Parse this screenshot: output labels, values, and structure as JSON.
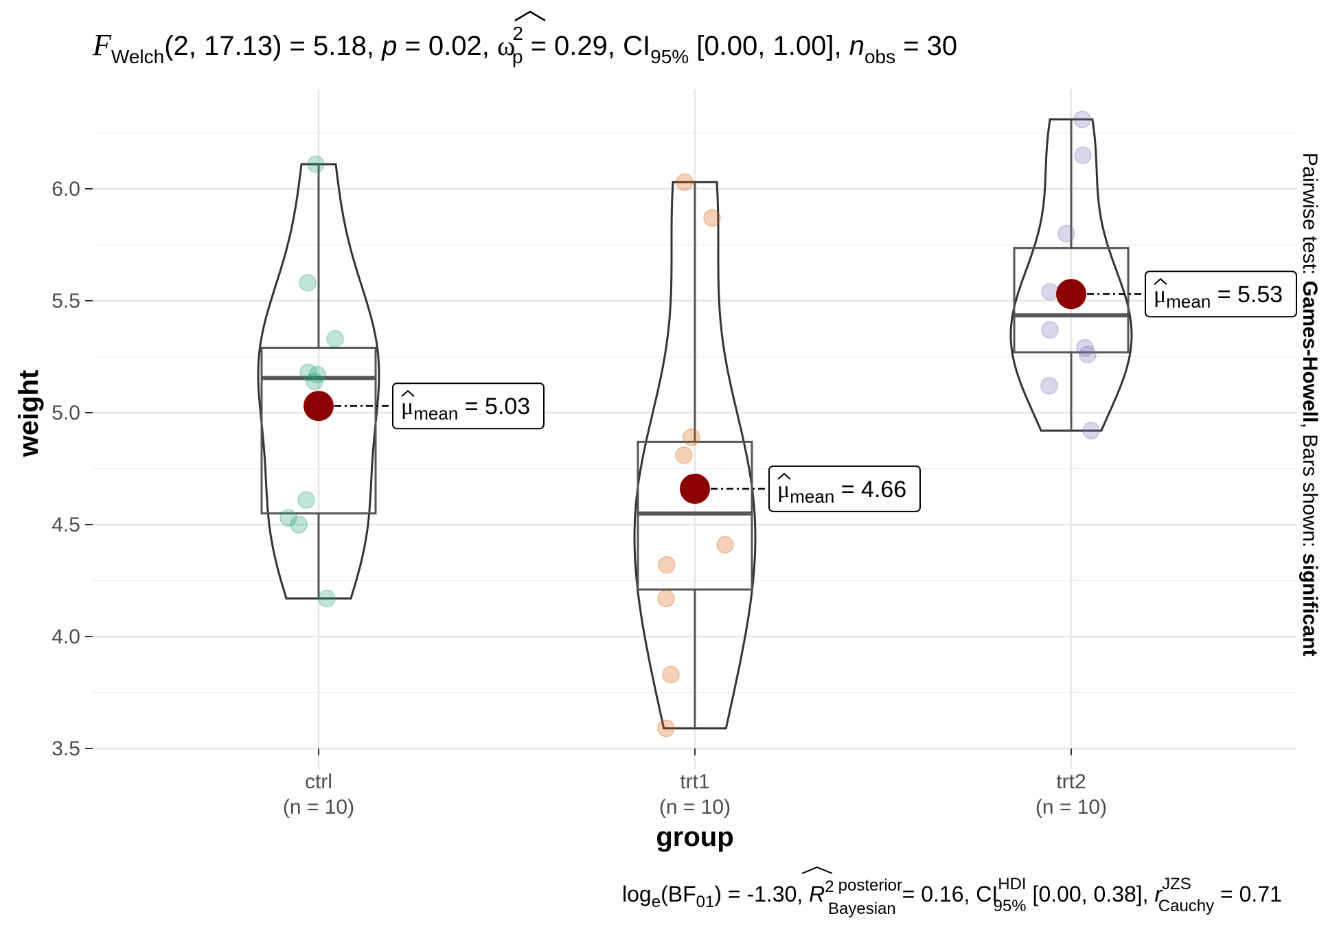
{
  "chart_data": {
    "type": "violin-box-scatter",
    "title": {
      "prefix": "F",
      "prefix_sub": "Welch",
      "stat": "(2, 17.13) = 5.18, ",
      "p_label": "p",
      "p_value": " = 0.02, ",
      "omega": "ω",
      "omega_sup": "2",
      "omega_sub": "p",
      "omega_value": " = 0.29, CI",
      "ci_sub": "95%",
      "ci_value": " [0.00, 1.00], ",
      "n_label": "n",
      "n_sub": "obs",
      "n_value": " = 30"
    },
    "caption": {
      "log": "log",
      "log_sub": "e",
      "bf": "(BF",
      "bf_sub": "01",
      "bf_value": ") = -1.30, ",
      "r": "R",
      "r_sup": "2",
      "r_posterior": "posterior",
      "r_bayesian": "Bayesian",
      "r_value": " = 0.16, CI",
      "hdi_sup": "HDI",
      "hdi_sub": "95%",
      "hdi_value": " [0.00, 0.38], ",
      "rc": "r",
      "rc_sup": "JZS",
      "rc_sub": "Cauchy",
      "rc_value": " = 0.71"
    },
    "xlabel": "group",
    "ylabel": "weight",
    "ylim": [
      3.5,
      6.35
    ],
    "y_ticks": [
      3.5,
      4.0,
      4.5,
      5.0,
      5.5,
      6.0
    ],
    "grid": true,
    "side_note": {
      "prefix": "Pairwise test: ",
      "test": "Games-Howell",
      "middle": ", Bars shown: ",
      "bars": "significant"
    },
    "mean_color": "#8b0000",
    "groups": [
      {
        "name": "ctrl",
        "n_label": "(n = 10)",
        "color": "#1b9e77",
        "points": [
          4.17,
          5.58,
          5.18,
          6.11,
          4.5,
          4.61,
          5.17,
          4.53,
          5.33,
          5.14
        ],
        "box": {
          "min": 4.17,
          "q1": 4.55,
          "median": 5.155,
          "q3": 5.29,
          "max": 6.11
        },
        "mean": 5.03,
        "mean_text": "5.03"
      },
      {
        "name": "trt1",
        "n_label": "(n = 10)",
        "color": "#d95f02",
        "points": [
          4.81,
          4.17,
          4.41,
          3.59,
          5.87,
          3.83,
          6.03,
          4.89,
          4.32,
          4.69
        ],
        "box": {
          "min": 3.59,
          "q1": 4.21,
          "median": 4.55,
          "q3": 4.87,
          "max": 6.03
        },
        "mean": 4.66,
        "mean_text": "4.66"
      },
      {
        "name": "trt2",
        "n_label": "(n = 10)",
        "color": "#7570b3",
        "points": [
          6.31,
          5.12,
          5.54,
          5.5,
          5.37,
          5.29,
          4.92,
          6.15,
          5.8,
          5.26
        ],
        "box": {
          "min": 4.92,
          "q1": 5.27,
          "median": 5.435,
          "q3": 5.735,
          "max": 6.31
        },
        "mean": 5.53,
        "mean_text": "5.53"
      }
    ],
    "mean_label_prefix": "μ",
    "mean_label_sub": "mean",
    "mean_label_eq": " = "
  }
}
